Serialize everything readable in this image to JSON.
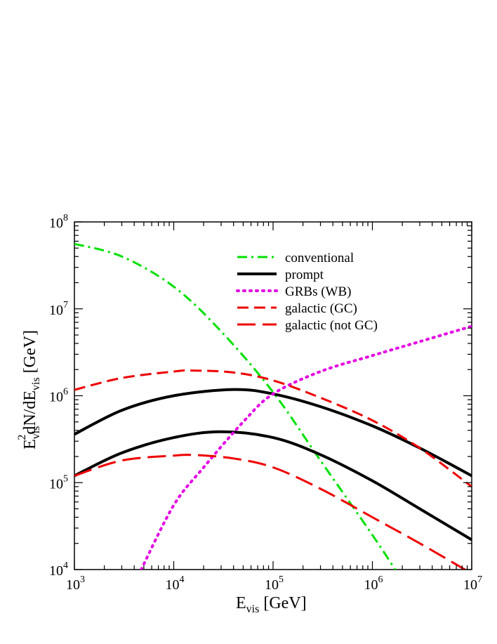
{
  "chart_data": {
    "type": "line",
    "title": "",
    "xlabel": {
      "main": "E",
      "sub": "vis",
      "rest": " [GeV]"
    },
    "ylabel": {
      "p1": "E",
      "sub1": "vis",
      "sup1": "2",
      "p2": "dN/dE",
      "sub2": "vis",
      "p3": " [GeV]"
    },
    "xscale": "log",
    "yscale": "log",
    "xlim": [
      1000,
      10000000
    ],
    "ylim": [
      10000,
      100000000
    ],
    "x_ticks": [
      {
        "base": "10",
        "exp": "3"
      },
      {
        "base": "10",
        "exp": "4"
      },
      {
        "base": "10",
        "exp": "5"
      },
      {
        "base": "10",
        "exp": "6"
      },
      {
        "base": "10",
        "exp": "7"
      }
    ],
    "y_ticks": [
      {
        "base": "10",
        "exp": "4"
      },
      {
        "base": "10",
        "exp": "5"
      },
      {
        "base": "10",
        "exp": "6"
      },
      {
        "base": "10",
        "exp": "7"
      },
      {
        "base": "10",
        "exp": "8"
      }
    ],
    "legend_position": "top-right inside",
    "series": [
      {
        "name": "conventional",
        "color": "#00e000",
        "style": "dashdot",
        "width": 3,
        "points": [
          [
            1000,
            56000000
          ],
          [
            3000,
            40000000
          ],
          [
            10000,
            18000000
          ],
          [
            30000,
            5500000
          ],
          [
            100000,
            1100000
          ],
          [
            300000,
            180000
          ],
          [
            1000000,
            25000
          ],
          [
            1800000,
            9000
          ]
        ]
      },
      {
        "name": "prompt",
        "color": "#000000",
        "style": "solid",
        "width": 4,
        "points": [
          [
            1000,
            360000
          ],
          [
            3000,
            680000
          ],
          [
            10000,
            1000000
          ],
          [
            40000,
            1180000
          ],
          [
            100000,
            1050000
          ],
          [
            300000,
            750000
          ],
          [
            1000000,
            450000
          ],
          [
            3000000,
            250000
          ],
          [
            10000000,
            120000
          ]
        ]
      },
      {
        "name": "prompt (lower)",
        "legend": false,
        "color": "#000000",
        "style": "solid",
        "width": 4,
        "points": [
          [
            1000,
            120000
          ],
          [
            3000,
            220000
          ],
          [
            10000,
            330000
          ],
          [
            30000,
            385000
          ],
          [
            100000,
            330000
          ],
          [
            300000,
            210000
          ],
          [
            1000000,
            105000
          ],
          [
            3000000,
            50000
          ],
          [
            10000000,
            22000
          ]
        ]
      },
      {
        "name": "GRBs (WB)",
        "color": "#e400e4",
        "style": "dotted",
        "width": 4,
        "points": [
          [
            4700,
            10000
          ],
          [
            10000,
            55000
          ],
          [
            20000,
            150000
          ],
          [
            50000,
            500000
          ],
          [
            100000,
            1050000
          ],
          [
            300000,
            1900000
          ],
          [
            1000000,
            2900000
          ],
          [
            3000000,
            4200000
          ],
          [
            10000000,
            6300000
          ]
        ]
      },
      {
        "name": "galactic (GC)",
        "color": "#ee0000",
        "style": "dashed",
        "width": 3,
        "points": [
          [
            1000,
            1170000
          ],
          [
            3000,
            1600000
          ],
          [
            10000,
            1900000
          ],
          [
            15000,
            1950000
          ],
          [
            40000,
            1850000
          ],
          [
            100000,
            1500000
          ],
          [
            300000,
            950000
          ],
          [
            1000000,
            520000
          ],
          [
            3000000,
            250000
          ],
          [
            10000000,
            90000
          ]
        ]
      },
      {
        "name": "galactic (not GC)",
        "color": "#ee0000",
        "style": "longdash",
        "width": 3,
        "points": [
          [
            1000,
            120000
          ],
          [
            3000,
            180000
          ],
          [
            10000,
            205000
          ],
          [
            16000,
            208000
          ],
          [
            40000,
            190000
          ],
          [
            100000,
            150000
          ],
          [
            300000,
            85000
          ],
          [
            1000000,
            40000
          ],
          [
            3000000,
            20000
          ],
          [
            10000000,
            9000
          ]
        ]
      }
    ]
  }
}
